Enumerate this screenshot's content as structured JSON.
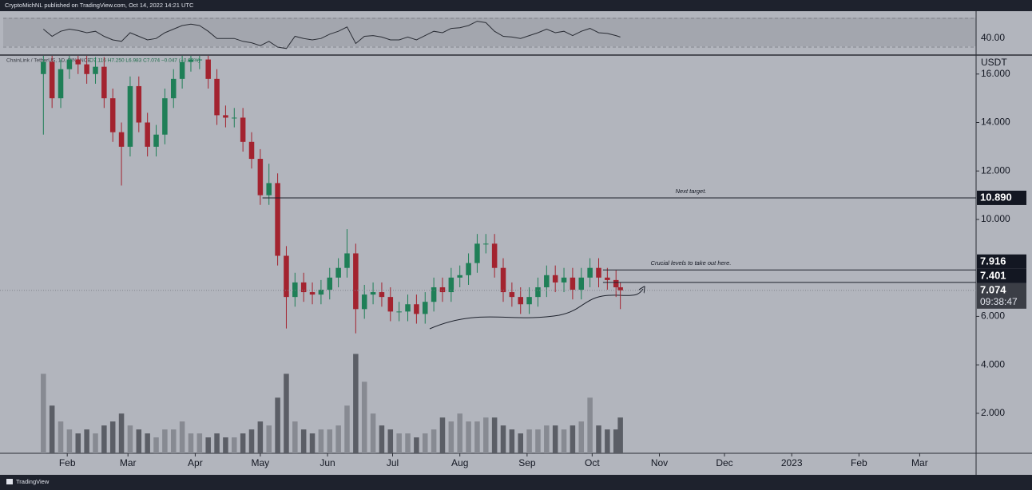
{
  "header": "CryptoMichNL published on TradingView.com, Oct 14, 2022 14:21 UTC",
  "footer": "TradingView",
  "chart_data": {
    "type": "candlestick",
    "title": "ChainLink / TetherUS, 1D, BINANCE",
    "legend_values": "O7.116 H7.250 L6.983 C7.074 −0.047 (−0.66%)",
    "y_axis_label": "USDT",
    "x": [
      20,
      24,
      28,
      32,
      36,
      40,
      44,
      48,
      52,
      56,
      60,
      64,
      68,
      72,
      76,
      80,
      84,
      88,
      92,
      96,
      100,
      104,
      108,
      112,
      116,
      120,
      124,
      128,
      132,
      136,
      140,
      144,
      148,
      152,
      156,
      160,
      164,
      168,
      172,
      176,
      180,
      184,
      188,
      192,
      196,
      200,
      204,
      208,
      212,
      216,
      220,
      224,
      228,
      232,
      236,
      240,
      244,
      248,
      252,
      256,
      260,
      264,
      268,
      272,
      276,
      280,
      284,
      286
    ],
    "open": [
      16.0,
      16.5,
      15.0,
      16.2,
      16.6,
      16.4,
      16.0,
      16.3,
      15.0,
      13.6,
      13.0,
      15.5,
      14.0,
      13.0,
      13.5,
      15.0,
      15.8,
      16.5,
      16.6,
      16.6,
      15.8,
      14.3,
      14.2,
      14.2,
      13.2,
      12.5,
      11.0,
      11.5,
      8.5,
      6.8,
      7.4,
      7.0,
      6.9,
      7.1,
      7.6,
      8.0,
      8.6,
      6.3,
      6.9,
      7.0,
      6.8,
      6.2,
      6.2,
      6.5,
      6.1,
      6.6,
      7.2,
      7.0,
      7.6,
      7.7,
      8.2,
      9.0,
      9.0,
      8.0,
      7.0,
      6.8,
      6.5,
      6.8,
      7.2,
      7.7,
      7.4,
      7.6,
      7.1,
      7.6,
      8.0,
      7.6,
      7.5,
      7.2
    ],
    "high": [
      16.9,
      16.9,
      16.6,
      17.0,
      17.0,
      16.8,
      16.7,
      16.7,
      15.4,
      14.0,
      15.9,
      15.9,
      14.4,
      13.9,
      15.4,
      16.2,
      16.9,
      17.0,
      17.0,
      17.0,
      16.2,
      14.7,
      14.6,
      14.6,
      13.6,
      12.9,
      12.3,
      11.9,
      8.9,
      7.8,
      7.8,
      7.4,
      7.5,
      8.0,
      8.4,
      9.6,
      9.0,
      7.3,
      7.4,
      7.4,
      7.2,
      6.6,
      6.9,
      6.9,
      7.0,
      7.6,
      7.6,
      8.0,
      8.1,
      8.6,
      9.4,
      9.4,
      9.4,
      8.4,
      7.4,
      7.2,
      7.2,
      7.6,
      8.1,
      8.1,
      8.0,
      8.0,
      8.0,
      8.4,
      8.4,
      8.0,
      7.9,
      7.4
    ],
    "low": [
      13.5,
      14.6,
      14.6,
      15.8,
      16.0,
      15.6,
      15.6,
      14.6,
      13.2,
      11.4,
      12.6,
      13.6,
      12.6,
      12.6,
      13.1,
      14.6,
      15.4,
      16.1,
      16.2,
      15.4,
      13.9,
      13.8,
      13.8,
      12.8,
      12.1,
      10.6,
      10.6,
      8.1,
      5.5,
      6.4,
      6.6,
      6.5,
      6.5,
      6.7,
      7.2,
      7.6,
      5.3,
      5.9,
      6.5,
      6.4,
      5.8,
      5.8,
      5.8,
      5.7,
      5.7,
      6.2,
      6.6,
      6.6,
      7.2,
      7.3,
      7.8,
      8.6,
      7.6,
      6.6,
      6.4,
      6.1,
      6.1,
      6.4,
      6.8,
      7.0,
      7.0,
      6.7,
      6.7,
      7.2,
      7.2,
      7.1,
      6.8,
      6.3
    ],
    "close": [
      16.5,
      15.0,
      16.2,
      16.6,
      16.4,
      16.0,
      16.3,
      15.0,
      13.6,
      13.0,
      15.5,
      14.0,
      13.0,
      13.5,
      15.0,
      15.8,
      16.5,
      16.6,
      16.6,
      15.8,
      14.3,
      14.2,
      14.2,
      13.2,
      12.5,
      11.0,
      11.5,
      8.5,
      6.8,
      7.4,
      7.0,
      6.9,
      7.1,
      7.6,
      8.0,
      8.6,
      6.3,
      6.9,
      7.0,
      6.8,
      6.2,
      6.2,
      6.5,
      6.1,
      6.6,
      7.2,
      7.0,
      7.6,
      7.7,
      8.2,
      9.0,
      9.0,
      8.0,
      7.0,
      6.8,
      6.5,
      6.8,
      7.2,
      7.7,
      7.4,
      7.6,
      7.1,
      7.6,
      8.0,
      7.6,
      7.5,
      7.2,
      7.074
    ],
    "volume": [
      20,
      12,
      8,
      6,
      5,
      6,
      5,
      7,
      8,
      10,
      7,
      6,
      5,
      4,
      6,
      6,
      8,
      5,
      5,
      4,
      5,
      4,
      4,
      5,
      6,
      8,
      7,
      14,
      20,
      8,
      6,
      5,
      6,
      6,
      7,
      12,
      25,
      18,
      10,
      7,
      6,
      5,
      5,
      4,
      5,
      6,
      9,
      8,
      10,
      8,
      8,
      9,
      9,
      7,
      6,
      5,
      6,
      6,
      7,
      7,
      6,
      7,
      8,
      14,
      7,
      6,
      6,
      9
    ],
    "vlim": [
      0,
      100
    ],
    "up_color": "#1f7f57",
    "down_color": "#a3232f",
    "volume_up_color": "#878a92",
    "volume_down_color": "#5b5e66",
    "xlim": [
      0,
      450
    ],
    "xticks": [
      {
        "value": 31,
        "label": "Feb"
      },
      {
        "value": 59,
        "label": "Mar"
      },
      {
        "value": 90,
        "label": "Apr"
      },
      {
        "value": 120,
        "label": "May"
      },
      {
        "value": 151,
        "label": "Jun"
      },
      {
        "value": 181,
        "label": "Jul"
      },
      {
        "value": 212,
        "label": "Aug"
      },
      {
        "value": 243,
        "label": "Sep"
      },
      {
        "value": 273,
        "label": "Oct"
      },
      {
        "value": 304,
        "label": "Nov"
      },
      {
        "value": 334,
        "label": "Dec"
      },
      {
        "value": 365,
        "label": "2023"
      },
      {
        "value": 396,
        "label": "Feb"
      },
      {
        "value": 424,
        "label": "Mar"
      }
    ],
    "ylim": [
      0.35,
      16.75
    ],
    "yticks": [
      {
        "value": 16,
        "label": "16.000"
      },
      {
        "value": 14,
        "label": "14.000"
      },
      {
        "value": 12,
        "label": "12.000"
      },
      {
        "value": 10,
        "label": "10.000"
      },
      {
        "value": 6,
        "label": "6.000"
      },
      {
        "value": 4,
        "label": "4.000"
      },
      {
        "value": 2,
        "label": "2.000"
      }
    ],
    "grid": false,
    "levels": [
      {
        "value": 10.89,
        "label": "10.890",
        "x0": 121,
        "note": "Next target."
      },
      {
        "value": 7.916,
        "label": "7.916",
        "x0": 278,
        "note": "Crucial levels to take out here."
      },
      {
        "value": 7.401,
        "label": "7.401",
        "x0": 278
      }
    ],
    "last": {
      "value": 7.074,
      "label": "7.074",
      "countdown": "09:38:47"
    },
    "rsi": {
      "values": [
        55,
        45,
        52,
        55,
        53,
        50,
        52,
        45,
        40,
        38,
        50,
        45,
        40,
        42,
        50,
        55,
        60,
        62,
        60,
        52,
        42,
        42,
        42,
        38,
        36,
        32,
        38,
        30,
        28,
        45,
        42,
        40,
        42,
        48,
        52,
        58,
        35,
        45,
        46,
        44,
        40,
        40,
        44,
        40,
        46,
        52,
        50,
        56,
        57,
        60,
        66,
        64,
        52,
        45,
        44,
        42,
        46,
        50,
        55,
        50,
        52,
        46,
        52,
        56,
        50,
        49,
        46,
        44
      ],
      "ylim": [
        20,
        80
      ],
      "yticks": [
        {
          "value": 40,
          "label": "40.00"
        }
      ],
      "bands": [
        70,
        30
      ],
      "color": "#2a2d35"
    }
  }
}
